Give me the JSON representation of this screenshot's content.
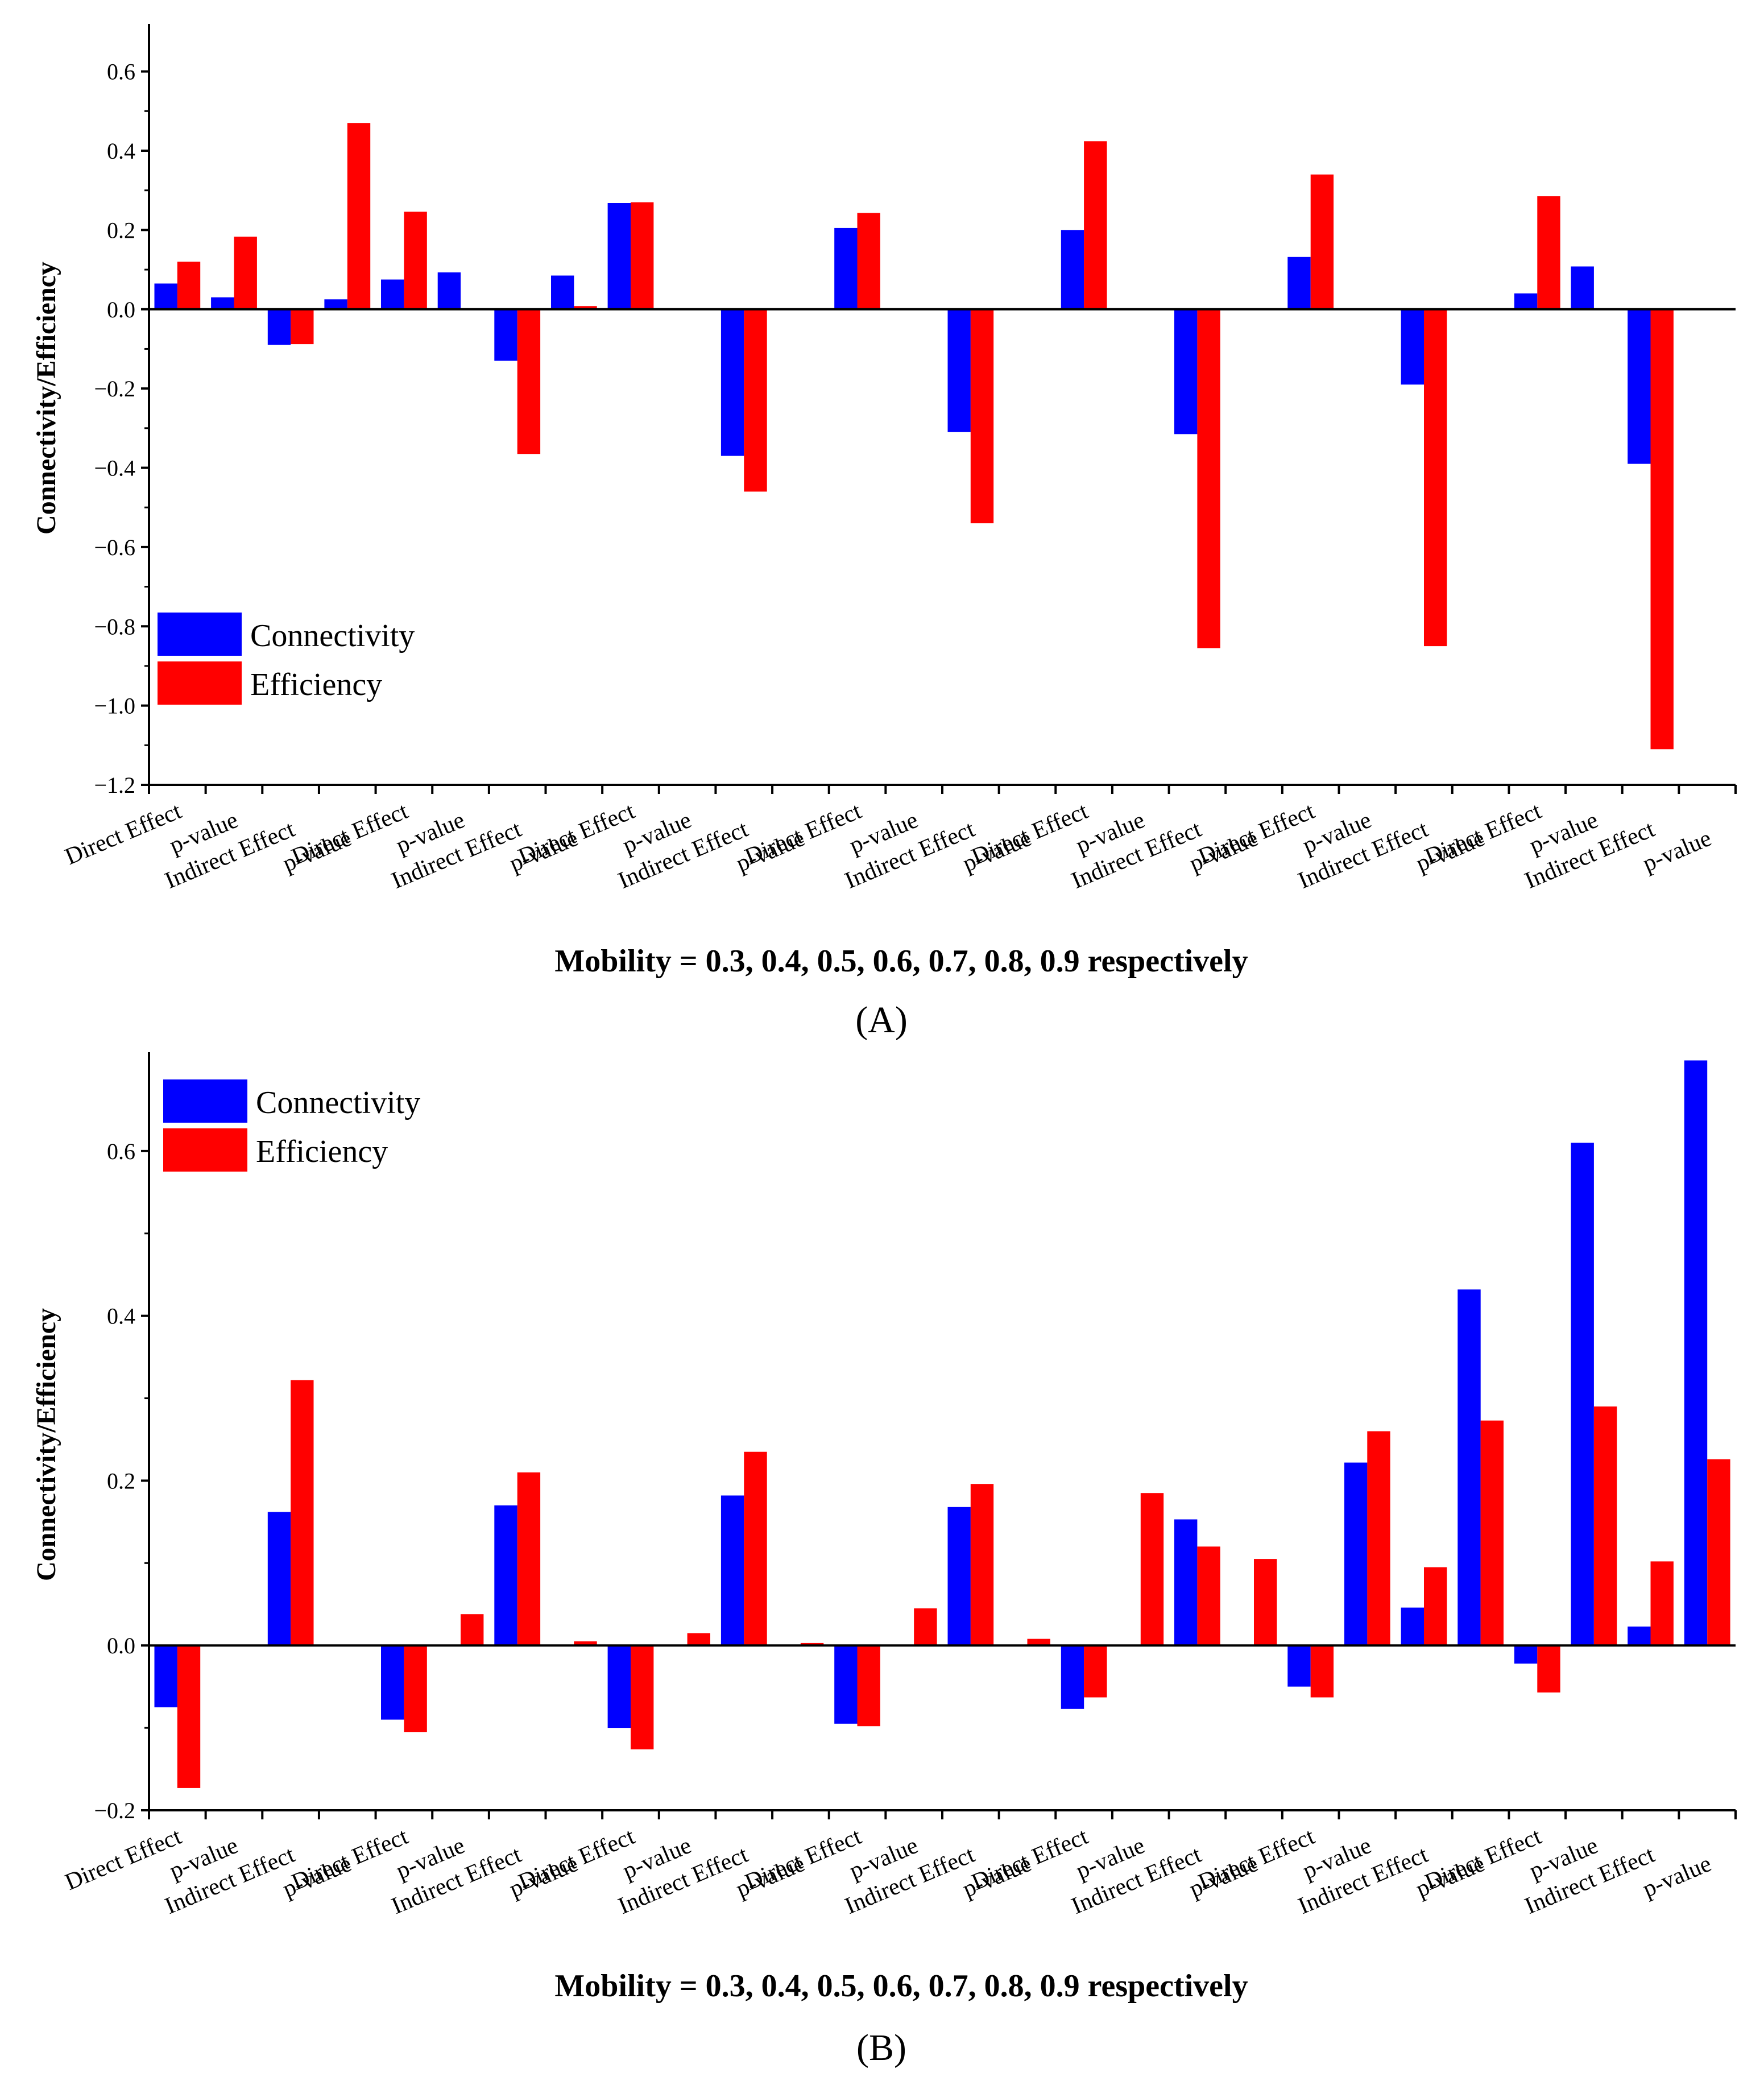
{
  "chart_data": [
    {
      "type": "bar",
      "panel_label": "(A)",
      "ylabel": "Connectivity/Efficiency",
      "xlabel": "Mobility = 0.3, 0.4, 0.5, 0.6, 0.7, 0.8, 0.9 respectively",
      "ylim": [
        -1.2,
        0.72
      ],
      "yticks": [
        -1.2,
        -1.0,
        -0.8,
        -0.6,
        -0.4,
        -0.2,
        0.0,
        0.2,
        0.4,
        0.6
      ],
      "ytick_labels": [
        "−1.2",
        "−1.0",
        "−0.8",
        "−0.6",
        "−0.4",
        "−0.2",
        "0.0",
        "0.2",
        "0.4",
        "0.6"
      ],
      "legend_position": "bottom-left",
      "categories": [
        "Direct Effect",
        "p-value",
        "Indirect Effect",
        "p-value",
        "Direct Effect",
        "p-value",
        "Indirect Effect",
        "p-value",
        "Direct Effect",
        "p-value",
        "Indirect Effect",
        "p-value",
        "Direct Effect",
        "p-value",
        "Indirect Effect",
        "p-value",
        "Direct Effect",
        "p-value",
        "Indirect Effect",
        "p-value",
        "Direct Effect",
        "p-value",
        "Indirect Effect",
        "p-value",
        "Direct Effect",
        "p-value",
        "Indirect Effect",
        "p-value"
      ],
      "series": [
        {
          "name": "Connectivity",
          "color": "#0000ff",
          "values": [
            0.065,
            0.03,
            -0.09,
            0.025,
            0.075,
            0.093,
            -0.13,
            0.085,
            0.268,
            0.0,
            -0.37,
            0.0,
            0.205,
            0.0,
            -0.31,
            0.0,
            0.2,
            0.0,
            -0.315,
            0.0,
            0.132,
            0.0,
            -0.19,
            0.0,
            0.04,
            0.108,
            -0.39,
            0.0
          ]
        },
        {
          "name": "Efficiency",
          "color": "#ff0000",
          "values": [
            0.12,
            0.183,
            -0.088,
            0.47,
            0.246,
            0.0,
            -0.365,
            0.008,
            0.27,
            0.0,
            -0.46,
            0.0,
            0.243,
            0.0,
            -0.54,
            0.0,
            0.424,
            0.0,
            -0.855,
            0.0,
            0.34,
            0.0,
            -0.85,
            0.0,
            0.285,
            0.0,
            -1.11,
            0.0
          ]
        }
      ]
    },
    {
      "type": "bar",
      "panel_label": "(B)",
      "ylabel": "Connectivity/Efficiency",
      "xlabel": "Mobility = 0.3, 0.4, 0.5, 0.6, 0.7, 0.8, 0.9 respectively",
      "ylim": [
        -0.2,
        0.72
      ],
      "yticks": [
        -0.2,
        0.0,
        0.2,
        0.4,
        0.6
      ],
      "ytick_labels": [
        "−0.2",
        "0.0",
        "0.2",
        "0.4",
        "0.6"
      ],
      "legend_position": "top-left",
      "categories": [
        "Direct Effect",
        "p-value",
        "Indirect Effect",
        "p-value",
        "Direct Effect",
        "p-value",
        "Indirect Effect",
        "p-value",
        "Direct Effect",
        "p-value",
        "Indirect Effect",
        "p-value",
        "Direct Effect",
        "p-value",
        "Indirect Effect",
        "p-value",
        "Direct Effect",
        "p-value",
        "Indirect Effect",
        "p-value",
        "Direct Effect",
        "p-value",
        "Indirect Effect",
        "p-value",
        "Direct Effect",
        "p-value",
        "Indirect Effect",
        "p-value"
      ],
      "series": [
        {
          "name": "Connectivity",
          "color": "#0000ff",
          "values": [
            -0.075,
            0.0,
            0.162,
            0.0,
            -0.09,
            0.0,
            0.17,
            0.0,
            -0.1,
            0.0,
            0.182,
            0.0,
            -0.095,
            0.0,
            0.168,
            0.0,
            -0.077,
            0.0,
            0.153,
            0.0,
            -0.05,
            0.222,
            0.046,
            0.432,
            -0.022,
            0.61,
            0.023,
            0.71
          ]
        },
        {
          "name": "Efficiency",
          "color": "#ff0000",
          "values": [
            -0.173,
            0.0,
            0.322,
            0.0,
            -0.105,
            0.038,
            0.21,
            0.005,
            -0.126,
            0.015,
            0.235,
            0.003,
            -0.098,
            0.045,
            0.196,
            0.008,
            -0.063,
            0.185,
            0.12,
            0.105,
            -0.063,
            0.26,
            0.095,
            0.273,
            -0.057,
            0.29,
            0.102,
            0.226
          ]
        }
      ]
    }
  ]
}
